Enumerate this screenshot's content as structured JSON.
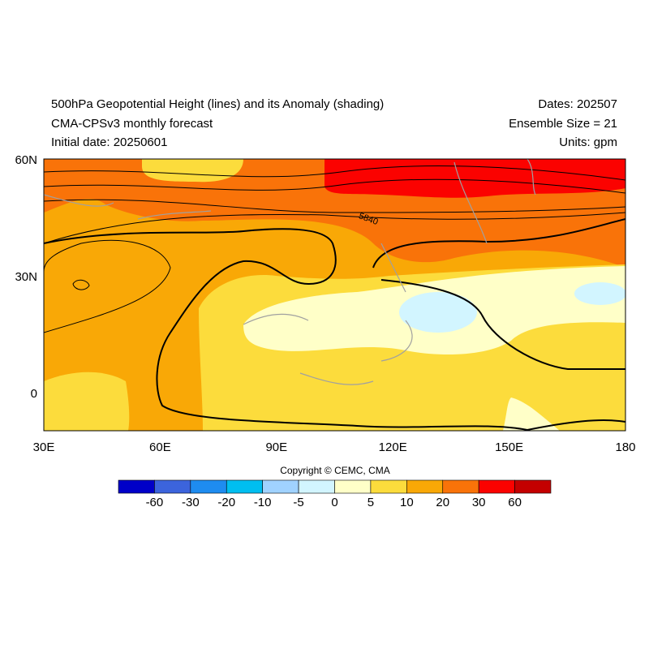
{
  "header": {
    "title": "500hPa Geopotential Height (lines) and its Anomaly (shading)",
    "subtitle": "CMA-CPSv3 monthly forecast",
    "initial_date": "Initial date: 20250601",
    "dates": "Dates: 202507",
    "ensemble": "Ensemble Size = 21",
    "units": "Units: gpm"
  },
  "map": {
    "lat_labels": [
      "60N",
      "30N",
      "0"
    ],
    "lon_labels": [
      "30E",
      "60E",
      "90E",
      "120E",
      "150E",
      "180"
    ],
    "contour_label": "5840"
  },
  "colorbar": {
    "colors": [
      "#0000c8",
      "#3c64dc",
      "#1e8cf0",
      "#00bef0",
      "#a0d2ff",
      "#d2f5ff",
      "#ffffc8",
      "#fcdc3c",
      "#f9a806",
      "#f97309",
      "#fb0200",
      "#c40000"
    ],
    "labels": [
      -60,
      -30,
      -20,
      -10,
      -5,
      0,
      5,
      10,
      20,
      30,
      60
    ]
  },
  "copyright": "Copyright © CEMC, CMA"
}
